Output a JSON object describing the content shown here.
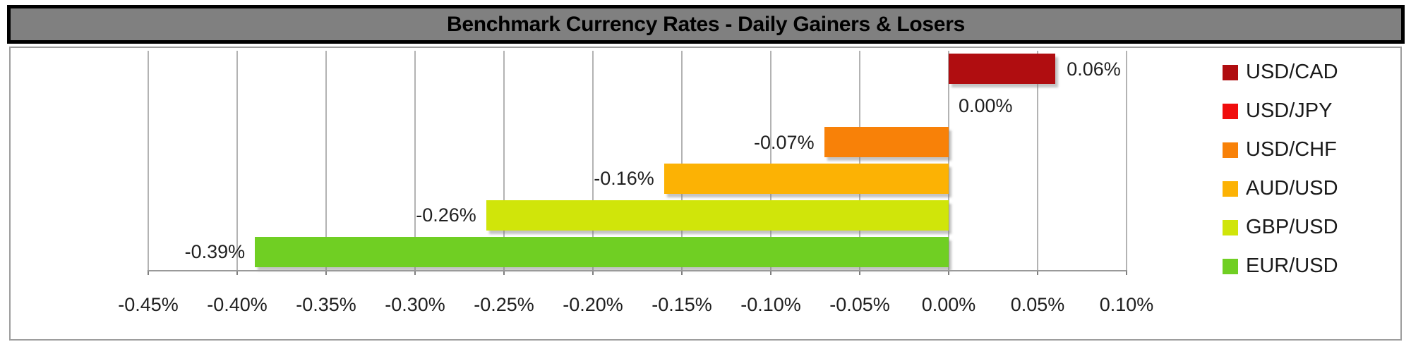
{
  "chart_data": {
    "type": "bar",
    "orientation": "horizontal",
    "title": "Benchmark Currency Rates - Daily Gainers & Losers",
    "categories": [
      "USD/CAD",
      "USD/JPY",
      "USD/CHF",
      "AUD/USD",
      "GBP/USD",
      "EUR/USD"
    ],
    "values": [
      0.06,
      0.0,
      -0.07,
      -0.16,
      -0.26,
      -0.39
    ],
    "data_labels": [
      "0.06%",
      "0.00%",
      "-0.07%",
      "-0.16%",
      "-0.26%",
      "-0.39%"
    ],
    "series_colors": [
      "#b00d10",
      "#f00d0d",
      "#f88108",
      "#fcb204",
      "#d0e50a",
      "#70cf23"
    ],
    "x_tick_labels": [
      "-0.45%",
      "-0.40%",
      "-0.35%",
      "-0.30%",
      "-0.25%",
      "-0.20%",
      "-0.15%",
      "-0.10%",
      "-0.05%",
      "0.00%",
      "0.05%",
      "0.10%"
    ],
    "x_tick_values": [
      -0.45,
      -0.4,
      -0.35,
      -0.3,
      -0.25,
      -0.2,
      -0.15,
      -0.1,
      -0.05,
      0.0,
      0.05,
      0.1
    ],
    "xlim": [
      -0.45,
      0.1
    ],
    "grid": true,
    "legend_position": "right",
    "legend_entries": [
      "USD/CAD",
      "USD/JPY",
      "USD/CHF",
      "AUD/USD",
      "GBP/USD",
      "EUR/USD"
    ]
  },
  "style": {
    "title_bg": "#808080",
    "title_text_color": "#000000",
    "grid_color": "#b3b3b3",
    "axis_color": "#9a9a9a",
    "label_color": "#1f1f1f",
    "frame_border_color": "#9d9d9d",
    "title_border_color": "#000000",
    "background": "#ffffff"
  }
}
